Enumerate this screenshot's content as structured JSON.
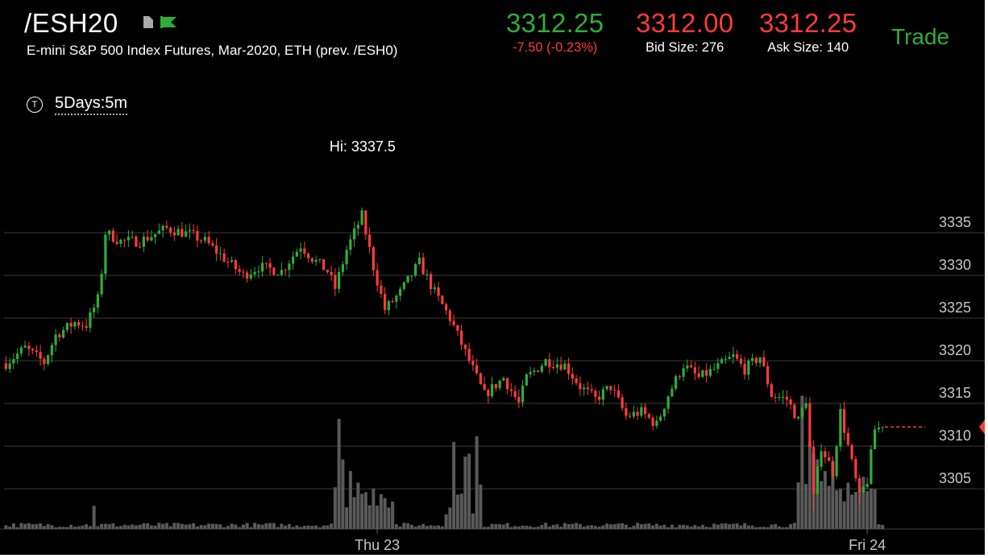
{
  "header": {
    "symbol": "/ESH20",
    "description": "E-mini S&P 500 Index Futures, Mar-2020, ETH (prev. /ESH0)",
    "last_price": "3312.25",
    "change": "-7.50 (-0.23%)",
    "bid_price": "3312.00",
    "bid_size_label": "Bid Size: 276",
    "ask_price": "3312.25",
    "ask_size_label": "Ask Size: 140",
    "trade_label": "Trade",
    "icons": [
      "document-icon",
      "flag-icon",
      "timeframe-icon"
    ]
  },
  "timeframe": {
    "label": "5Days:5m",
    "icon_letter": "T"
  },
  "colors": {
    "up": "#2fad3a",
    "down": "#ff3b3b",
    "volume": "#595959",
    "grid": "#3a3a3a",
    "background": "#000000"
  },
  "chart_data": {
    "type": "candlestick",
    "interval": "5m",
    "y_tick_labels": [
      "3335",
      "3330",
      "3325",
      "3320",
      "3315",
      "3310",
      "3305"
    ],
    "y_ticks": [
      3335,
      3330,
      3325,
      3320,
      3315,
      3310,
      3305
    ],
    "ylim": [
      3300.3,
      3343.2
    ],
    "x_tick_labels": [
      "Thu 23",
      "Fri 24"
    ],
    "x_ticks_bar_index": [
      97,
      225
    ],
    "bar_count": 240,
    "high_annotation": "Hi: 3337.5",
    "high_value": 3337.5,
    "high_bar_index": 94,
    "last_price": 3312.25,
    "close_path": [
      [
        0,
        3319.7
      ],
      [
        5,
        3321.5
      ],
      [
        10,
        3319.8
      ],
      [
        13,
        3323.0
      ],
      [
        18,
        3324.5
      ],
      [
        21,
        3324.2
      ],
      [
        24,
        3327.2
      ],
      [
        25,
        3330.5
      ],
      [
        26,
        3335.0
      ],
      [
        30,
        3334.0
      ],
      [
        35,
        3334.0
      ],
      [
        42,
        3335.5
      ],
      [
        48,
        3334.8
      ],
      [
        52,
        3334.0
      ],
      [
        57,
        3332.0
      ],
      [
        62,
        3330.0
      ],
      [
        66,
        3331.0
      ],
      [
        72,
        3330.5
      ],
      [
        77,
        3333.5
      ],
      [
        80,
        3332.0
      ],
      [
        84,
        3330.5
      ],
      [
        86,
        3328.5
      ],
      [
        89,
        3333.0
      ],
      [
        93,
        3337.0
      ],
      [
        96,
        3331.0
      ],
      [
        99,
        3326.0
      ],
      [
        103,
        3328.0
      ],
      [
        108,
        3331.5
      ],
      [
        112,
        3328.0
      ],
      [
        116,
        3325.0
      ],
      [
        119,
        3322.0
      ],
      [
        122,
        3319.0
      ],
      [
        125,
        3316.0
      ],
      [
        130,
        3318.0
      ],
      [
        134,
        3315.0
      ],
      [
        136,
        3318.0
      ],
      [
        141,
        3320.0
      ],
      [
        146,
        3319.5
      ],
      [
        150,
        3317.0
      ],
      [
        154,
        3315.5
      ],
      [
        158,
        3317.0
      ],
      [
        162,
        3313.5
      ],
      [
        166,
        3314.0
      ],
      [
        170,
        3312.5
      ],
      [
        173,
        3316.0
      ],
      [
        177,
        3319.5
      ],
      [
        181,
        3318.0
      ],
      [
        185,
        3319.0
      ],
      [
        190,
        3320.5
      ],
      [
        193,
        3319.0
      ],
      [
        197,
        3320.5
      ],
      [
        200,
        3316.0
      ],
      [
        204,
        3315.5
      ],
      [
        207,
        3313.0
      ],
      [
        209,
        3315.5
      ],
      [
        211,
        3304.0
      ],
      [
        213,
        3310.0
      ],
      [
        216,
        3307.0
      ],
      [
        218,
        3314.0
      ],
      [
        221,
        3308.0
      ],
      [
        223,
        3304.0
      ],
      [
        225,
        3306.0
      ],
      [
        227,
        3312.0
      ],
      [
        229,
        3312.25
      ]
    ],
    "volume_spikes": [
      [
        23,
        0.4
      ],
      [
        87,
        1.9
      ],
      [
        88,
        1.2
      ],
      [
        90,
        1.0
      ],
      [
        92,
        0.8
      ],
      [
        96,
        0.7
      ],
      [
        98,
        0.6
      ],
      [
        117,
        1.5
      ],
      [
        120,
        1.25
      ],
      [
        121,
        1.3
      ],
      [
        123,
        1.6
      ],
      [
        208,
        2.3
      ],
      [
        210,
        1.5
      ],
      [
        211,
        1.3
      ],
      [
        212,
        1.2
      ],
      [
        214,
        1.0
      ],
      [
        216,
        1.15
      ],
      [
        220,
        0.8
      ],
      [
        224,
        0.9
      ],
      [
        226,
        0.7
      ]
    ]
  }
}
